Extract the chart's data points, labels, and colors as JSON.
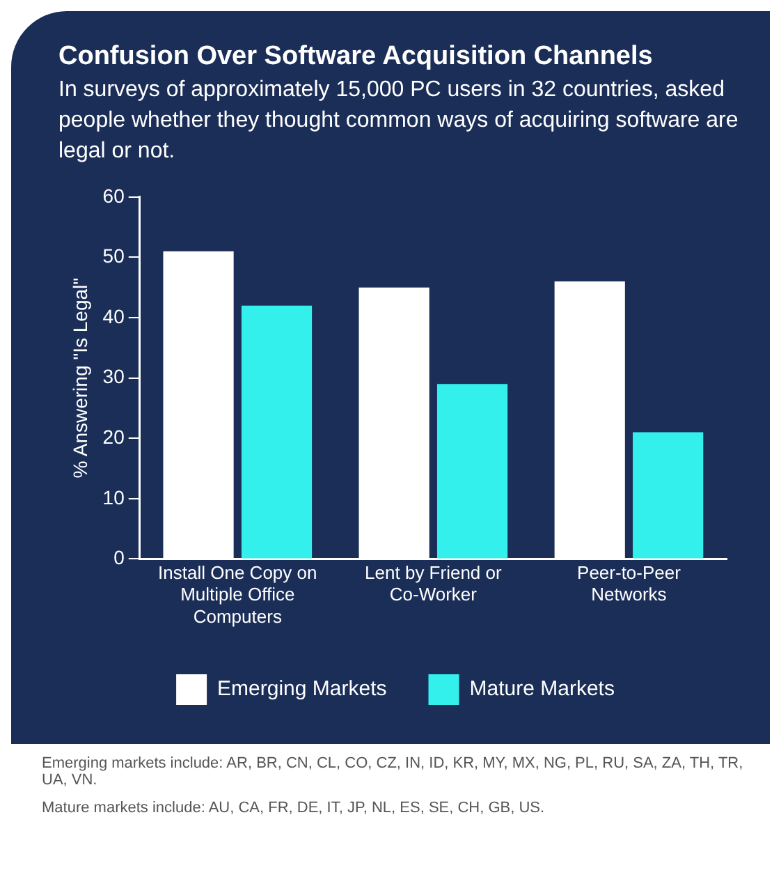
{
  "chart_data": {
    "type": "bar",
    "title": "Confusion Over Software Acquisition Channels",
    "subtitle": "In surveys of approximately 15,000 PC users in 32 countries, asked people whether they thought common ways of acquiring software are legal or not.",
    "ylabel": "% Answering \"Is Legal\"",
    "categories": [
      "Install One Copy on Multiple Office Computers",
      "Lent by Friend or Co-Worker",
      "Peer-to-Peer Networks"
    ],
    "series": [
      {
        "name": "Emerging Markets",
        "color": "#ffffff",
        "values": [
          51,
          45,
          46
        ]
      },
      {
        "name": "Mature Markets",
        "color": "#33f0ec",
        "values": [
          42,
          29,
          21
        ]
      }
    ],
    "ylim": [
      0,
      60
    ],
    "yticks": [
      0,
      10,
      20,
      30,
      40,
      50,
      60
    ],
    "grid": false,
    "legend": "bottom",
    "annotations": [
      "Emerging markets include: AR, BR, CN, CL, CO, CZ, IN, ID, KR, MY, MX, NG, PL, RU, SA, ZA, TH, TR, UA, VN.",
      "Mature markets include: AU, CA, FR, DE, IT, JP, NL, ES, SE, CH, GB, US."
    ]
  }
}
